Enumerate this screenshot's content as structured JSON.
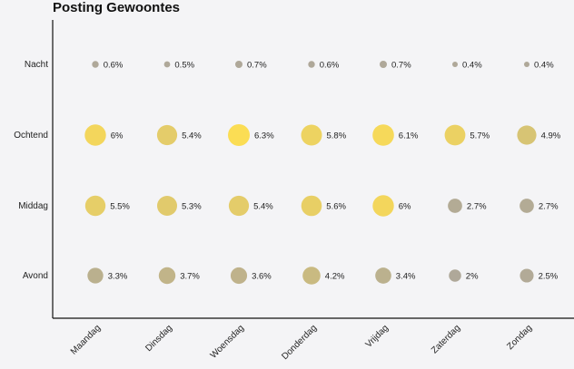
{
  "chart_data": {
    "type": "scatter",
    "title": "Posting Gewoontes",
    "xlabel": "",
    "ylabel": "",
    "x_categories": [
      "Maandag",
      "Dinsdag",
      "Woensdag",
      "Donderdag",
      "Vrijdag",
      "Zaterdag",
      "Zondag"
    ],
    "y_categories": [
      "Nacht",
      "Ochtend",
      "Middag",
      "Avond"
    ],
    "values": [
      [
        0.6,
        0.5,
        0.7,
        0.6,
        0.7,
        0.4,
        0.4
      ],
      [
        6,
        5.4,
        6.3,
        5.8,
        6.1,
        5.7,
        4.9
      ],
      [
        5.5,
        5.3,
        5.4,
        5.6,
        6,
        2.7,
        2.7
      ],
      [
        3.3,
        3.7,
        3.6,
        4.2,
        3.4,
        2,
        2.5
      ]
    ],
    "labels": [
      [
        "0.6%",
        "0.5%",
        "0.7%",
        "0.6%",
        "0.7%",
        "0.4%",
        "0.4%"
      ],
      [
        "6%",
        "5.4%",
        "6.3%",
        "5.8%",
        "6.1%",
        "5.7%",
        "4.9%"
      ],
      [
        "5.5%",
        "5.3%",
        "5.4%",
        "5.6%",
        "6%",
        "2.7%",
        "2.7%"
      ],
      [
        "3.3%",
        "3.7%",
        "3.6%",
        "4.2%",
        "3.4%",
        "2%",
        "2.5%"
      ]
    ],
    "color_low": "#a59d8c",
    "color_high": "#fcd93e",
    "grid": false
  }
}
